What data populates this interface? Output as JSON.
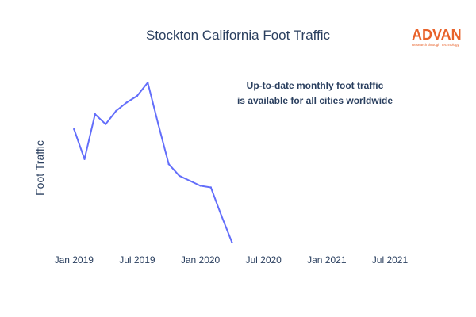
{
  "chart_data": {
    "type": "line",
    "title": "Stockton California Foot Traffic",
    "ylabel": "Foot Traffic",
    "xlabel": "",
    "x_tick_labels": [
      "Jan 2019",
      "Jul 2019",
      "Jan 2020",
      "Jul 2020",
      "Jan 2021",
      "Jul 2021"
    ],
    "x_range": [
      "2018-12",
      "2021-09"
    ],
    "y_range": [
      0,
      100
    ],
    "y_tick_labels_shown": false,
    "grid": false,
    "annotation": [
      "Up-to-date monthly foot traffic",
      "is available for all cities worldwide"
    ],
    "series": [
      {
        "color": "#636efa",
        "x": [
          "2019-01",
          "2019-02",
          "2019-03",
          "2019-04",
          "2019-05",
          "2019-06",
          "2019-07",
          "2019-08",
          "2019-09",
          "2019-10",
          "2019-11",
          "2019-12",
          "2020-01",
          "2020-02",
          "2020-03",
          "2020-04"
        ],
        "y": [
          70,
          52,
          79,
          73,
          81,
          86,
          90,
          98,
          73,
          49,
          42,
          39,
          36,
          35,
          18,
          2
        ]
      }
    ]
  },
  "logo": {
    "text": "ADVAN",
    "tagline": "Research through Technology",
    "color": "#e8622a"
  }
}
